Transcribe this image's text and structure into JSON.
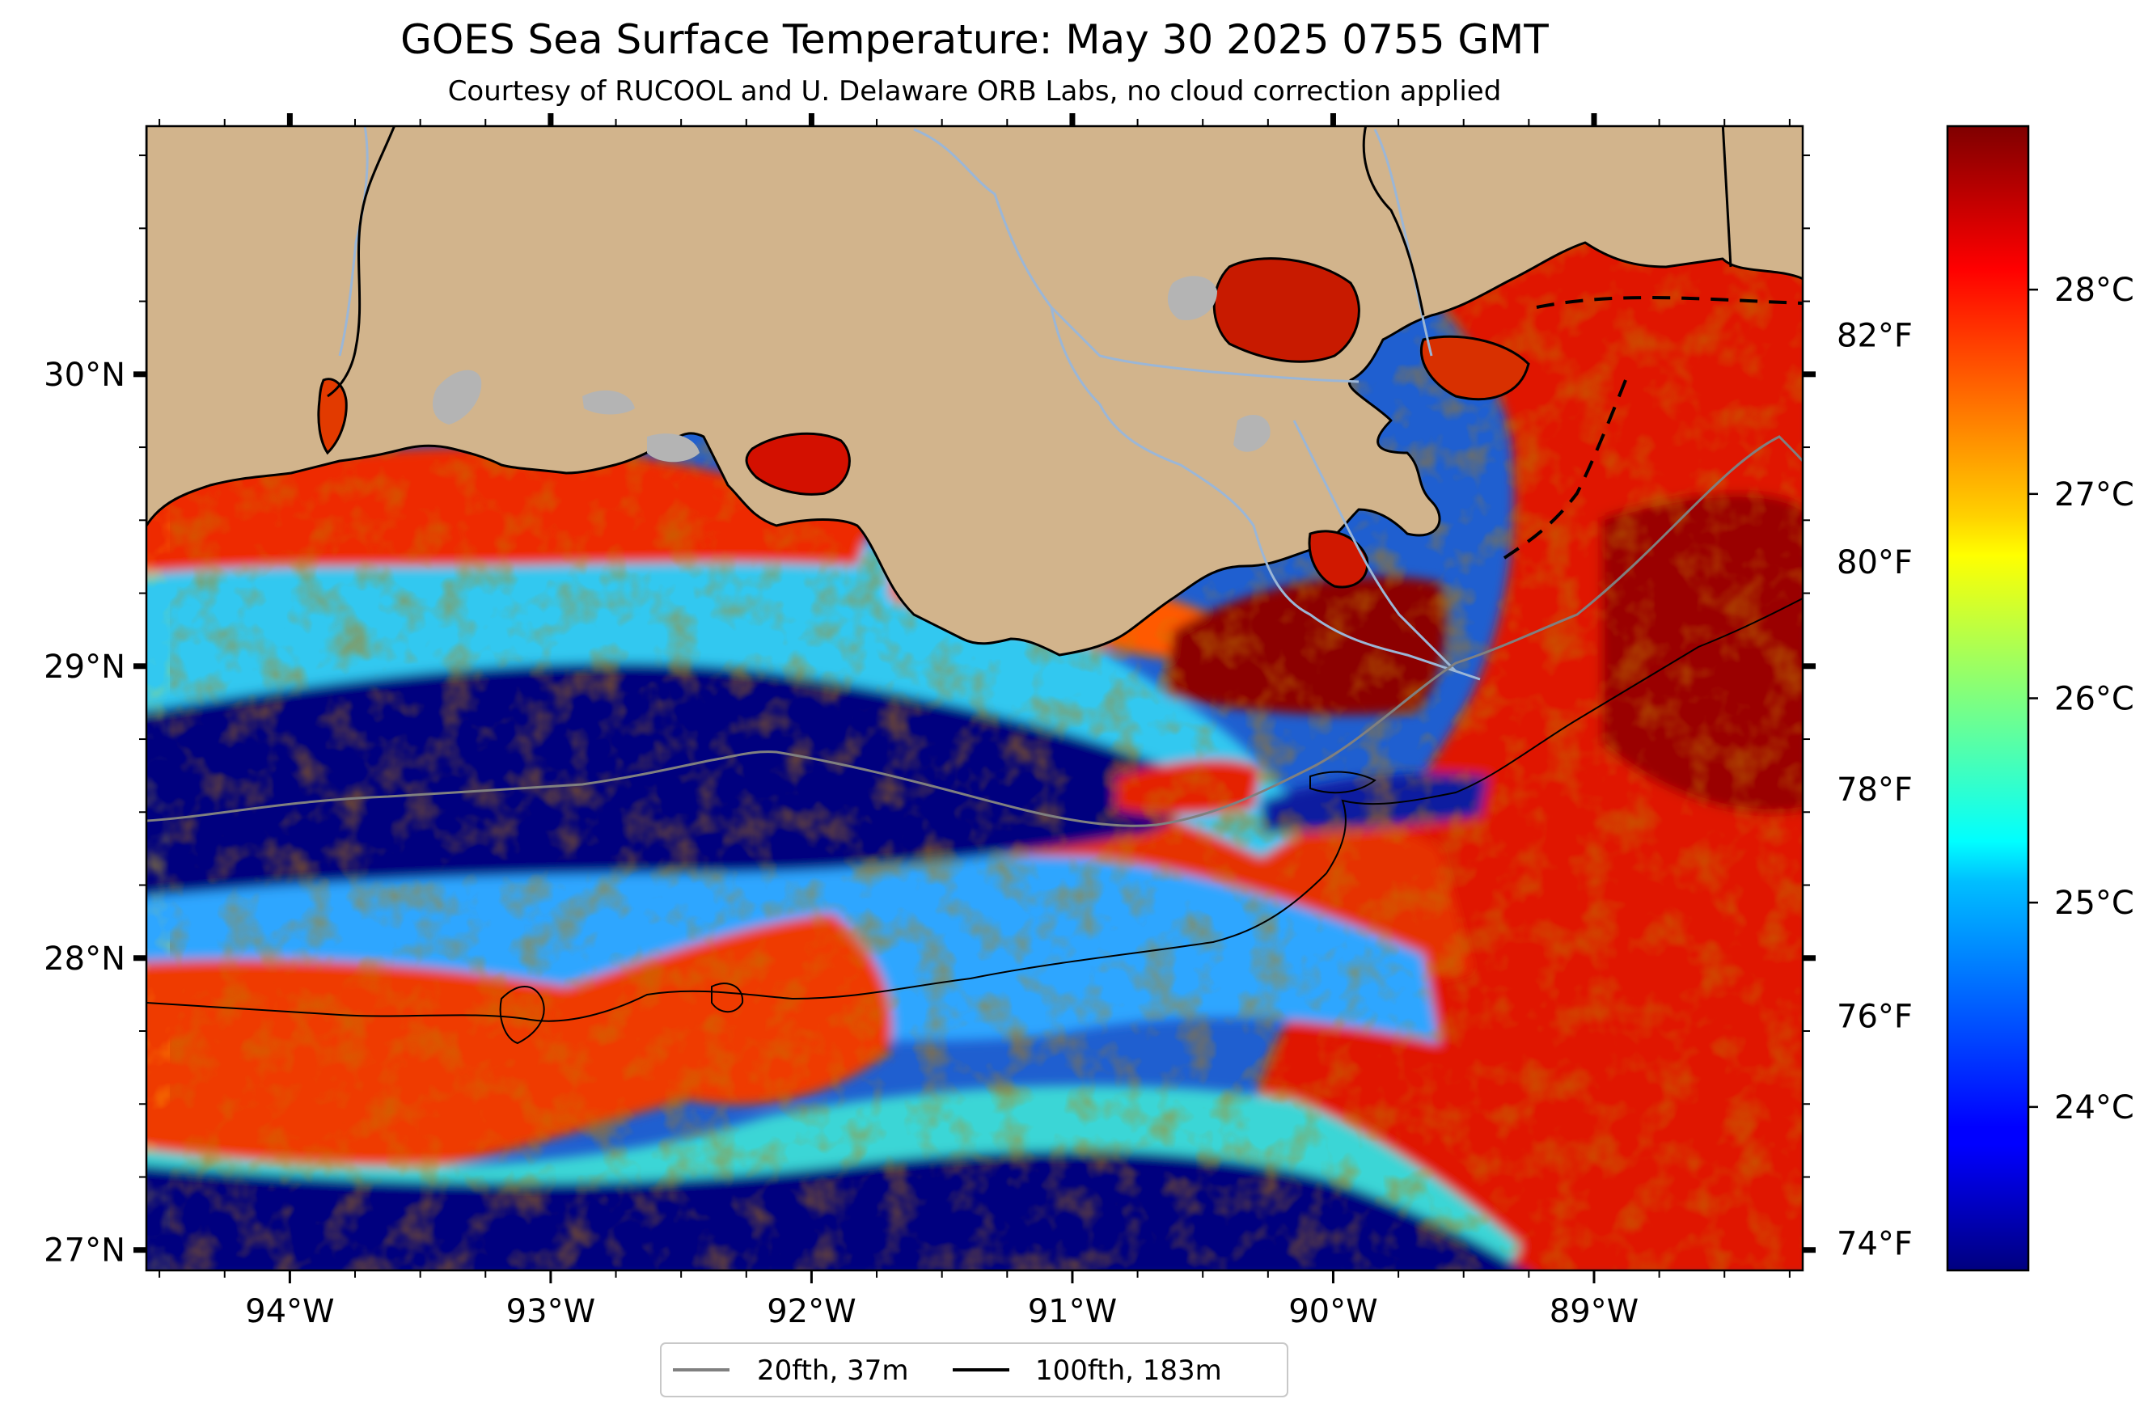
{
  "title": "GOES Sea Surface Temperature: May 30 2025 0755 GMT",
  "subtitle": "Courtesy of RUCOOL and U. Delaware ORB Labs, no cloud correction applied",
  "map": {
    "lon_range": [
      -94.55,
      -88.2
    ],
    "lat_range": [
      26.93,
      30.85
    ],
    "lon_ticks": [
      {
        "value": -94,
        "label": "94°W"
      },
      {
        "value": -93,
        "label": "93°W"
      },
      {
        "value": -92,
        "label": "92°W"
      },
      {
        "value": -91,
        "label": "91°W"
      },
      {
        "value": -90,
        "label": "90°W"
      },
      {
        "value": -89,
        "label": "89°W"
      }
    ],
    "lat_ticks": [
      {
        "value": 27,
        "label": "27°N"
      },
      {
        "value": 28,
        "label": "28°N"
      },
      {
        "value": 29,
        "label": "29°N"
      },
      {
        "value": 30,
        "label": "30°N"
      }
    ],
    "fahrenheit_ticks": [
      {
        "value": 74,
        "label": "74°F"
      },
      {
        "value": 76,
        "label": "76°F"
      },
      {
        "value": 78,
        "label": "78°F"
      },
      {
        "value": 80,
        "label": "80°F"
      },
      {
        "value": 82,
        "label": "82°F"
      }
    ],
    "colors": {
      "land": "#d2b48c",
      "lakes": "#b4b4b4",
      "rivers": "#9bb6d6",
      "iso20": "#808080",
      "iso100": "#000000",
      "missing": "#ffffff"
    }
  },
  "colorbar": {
    "range_c": [
      23.2,
      28.8
    ],
    "colormap": "jet",
    "ticks": [
      {
        "value": 24,
        "label": "24°C"
      },
      {
        "value": 25,
        "label": "25°C"
      },
      {
        "value": 26,
        "label": "26°C"
      },
      {
        "value": 27,
        "label": "27°C"
      },
      {
        "value": 28,
        "label": "28°C"
      }
    ]
  },
  "legend": {
    "items": [
      {
        "label": "20fth, 37m",
        "color": "#808080"
      },
      {
        "label": "100fth, 183m",
        "color": "#000000"
      }
    ]
  }
}
